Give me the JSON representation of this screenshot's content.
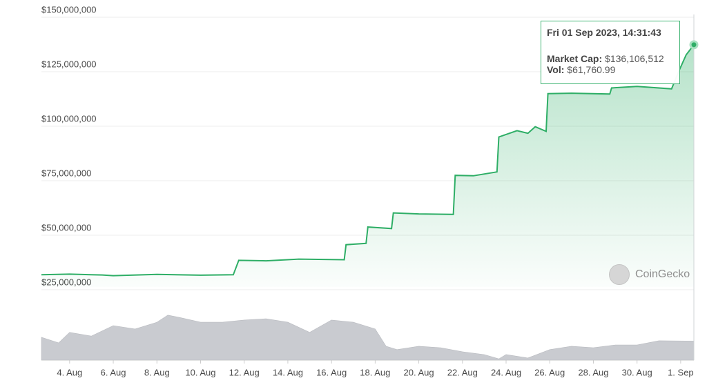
{
  "chart_data": {
    "type": "line",
    "xlim": [
      "2023-08-02T17:00",
      "2023-09-01T14:31"
    ],
    "xticks": [
      {
        "value": "2023-08-04T00:00",
        "label": "4. Aug"
      },
      {
        "value": "2023-08-06T00:00",
        "label": "6. Aug"
      },
      {
        "value": "2023-08-08T00:00",
        "label": "8. Aug"
      },
      {
        "value": "2023-08-10T00:00",
        "label": "10. Aug"
      },
      {
        "value": "2023-08-12T00:00",
        "label": "12. Aug"
      },
      {
        "value": "2023-08-14T00:00",
        "label": "14. Aug"
      },
      {
        "value": "2023-08-16T00:00",
        "label": "16. Aug"
      },
      {
        "value": "2023-08-18T00:00",
        "label": "18. Aug"
      },
      {
        "value": "2023-08-20T00:00",
        "label": "20. Aug"
      },
      {
        "value": "2023-08-22T00:00",
        "label": "22. Aug"
      },
      {
        "value": "2023-08-24T00:00",
        "label": "24. Aug"
      },
      {
        "value": "2023-08-26T00:00",
        "label": "26. Aug"
      },
      {
        "value": "2023-08-28T00:00",
        "label": "28. Aug"
      },
      {
        "value": "2023-08-30T00:00",
        "label": "30. Aug"
      },
      {
        "value": "2023-09-01T00:00",
        "label": "1. Sep"
      }
    ],
    "ylim": [
      25000000,
      150000000
    ],
    "yticks": [
      {
        "value": 25000000,
        "label": "$25,000,000"
      },
      {
        "value": 50000000,
        "label": "$50,000,000"
      },
      {
        "value": 75000000,
        "label": "$75,000,000"
      },
      {
        "value": 100000000,
        "label": "$100,000,000"
      },
      {
        "value": 125000000,
        "label": "$125,000,000"
      },
      {
        "value": 150000000,
        "label": "$150,000,000"
      }
    ],
    "y2lim": [
      0,
      150000
    ],
    "grid": true,
    "series": [
      {
        "color": "#2eae66",
        "x": [
          "2023-08-02T17:00",
          "2023-08-04T00:00",
          "2023-08-05T12:00",
          "2023-08-06T00:00",
          "2023-08-08T00:00",
          "2023-08-10T00:00",
          "2023-08-11T12:00",
          "2023-08-11T18:00",
          "2023-08-13T00:00",
          "2023-08-14T12:00",
          "2023-08-16T14:00",
          "2023-08-16T16:00",
          "2023-08-17T14:00",
          "2023-08-17T16:00",
          "2023-08-18T18:00",
          "2023-08-18T20:00",
          "2023-08-20T00:00",
          "2023-08-21T14:00",
          "2023-08-21T16:00",
          "2023-08-22T12:00",
          "2023-08-23T14:00",
          "2023-08-23T16:00",
          "2023-08-24T12:00",
          "2023-08-25T00:00",
          "2023-08-25T08:00",
          "2023-08-25T20:00",
          "2023-08-25T22:00",
          "2023-08-27T00:00",
          "2023-08-28T18:00",
          "2023-08-28T20:00",
          "2023-08-30T00:00",
          "2023-08-31T14:00",
          "2023-08-31T22:00",
          "2023-09-01T06:00",
          "2023-09-01T14:31"
        ],
        "values": [
          30600000,
          30900000,
          30500000,
          30200000,
          30800000,
          30400000,
          30600000,
          37200000,
          37000000,
          37800000,
          37500000,
          44400000,
          45000000,
          52500000,
          51800000,
          59000000,
          58500000,
          58300000,
          76200000,
          76000000,
          77800000,
          93800000,
          96700000,
          95500000,
          98500000,
          96400000,
          113700000,
          113900000,
          113500000,
          116300000,
          117000000,
          115900000,
          124000000,
          131500000,
          136106512
        ]
      },
      {
        "color": "#c9cbd0",
        "axis": "y2",
        "x": [
          "2023-08-02T17:00",
          "2023-08-03T12:00",
          "2023-08-04T00:00",
          "2023-08-05T00:00",
          "2023-08-06T00:00",
          "2023-08-07T00:00",
          "2023-08-08T00:00",
          "2023-08-08T12:00",
          "2023-08-09T00:00",
          "2023-08-10T00:00",
          "2023-08-11T00:00",
          "2023-08-12T00:00",
          "2023-08-13T00:00",
          "2023-08-14T00:00",
          "2023-08-15T00:00",
          "2023-08-16T00:00",
          "2023-08-17T00:00",
          "2023-08-18T00:00",
          "2023-08-18T12:00",
          "2023-08-19T00:00",
          "2023-08-20T00:00",
          "2023-08-21T00:00",
          "2023-08-22T00:00",
          "2023-08-23T00:00",
          "2023-08-23T16:00",
          "2023-08-24T00:00",
          "2023-08-25T00:00",
          "2023-08-26T00:00",
          "2023-08-27T00:00",
          "2023-08-28T00:00",
          "2023-08-29T00:00",
          "2023-08-30T00:00",
          "2023-08-31T00:00",
          "2023-09-01T14:31"
        ],
        "values": [
          74000,
          56000,
          90000,
          78000,
          112000,
          101000,
          123000,
          146000,
          139000,
          123000,
          123000,
          130000,
          134000,
          123000,
          90000,
          130000,
          123000,
          101000,
          45000,
          34000,
          45000,
          40000,
          27000,
          18000,
          4000,
          18000,
          7000,
          34000,
          45000,
          40000,
          49000,
          49000,
          63000,
          61760.99
        ]
      }
    ]
  },
  "tooltip": {
    "title": "Fri 01 Sep 2023, 14:31:43",
    "rows": [
      {
        "label": "Market Cap:",
        "value": "$136,106,512"
      },
      {
        "label": "Vol:",
        "value": "$61,760.99"
      }
    ]
  },
  "watermark": "CoinGecko"
}
